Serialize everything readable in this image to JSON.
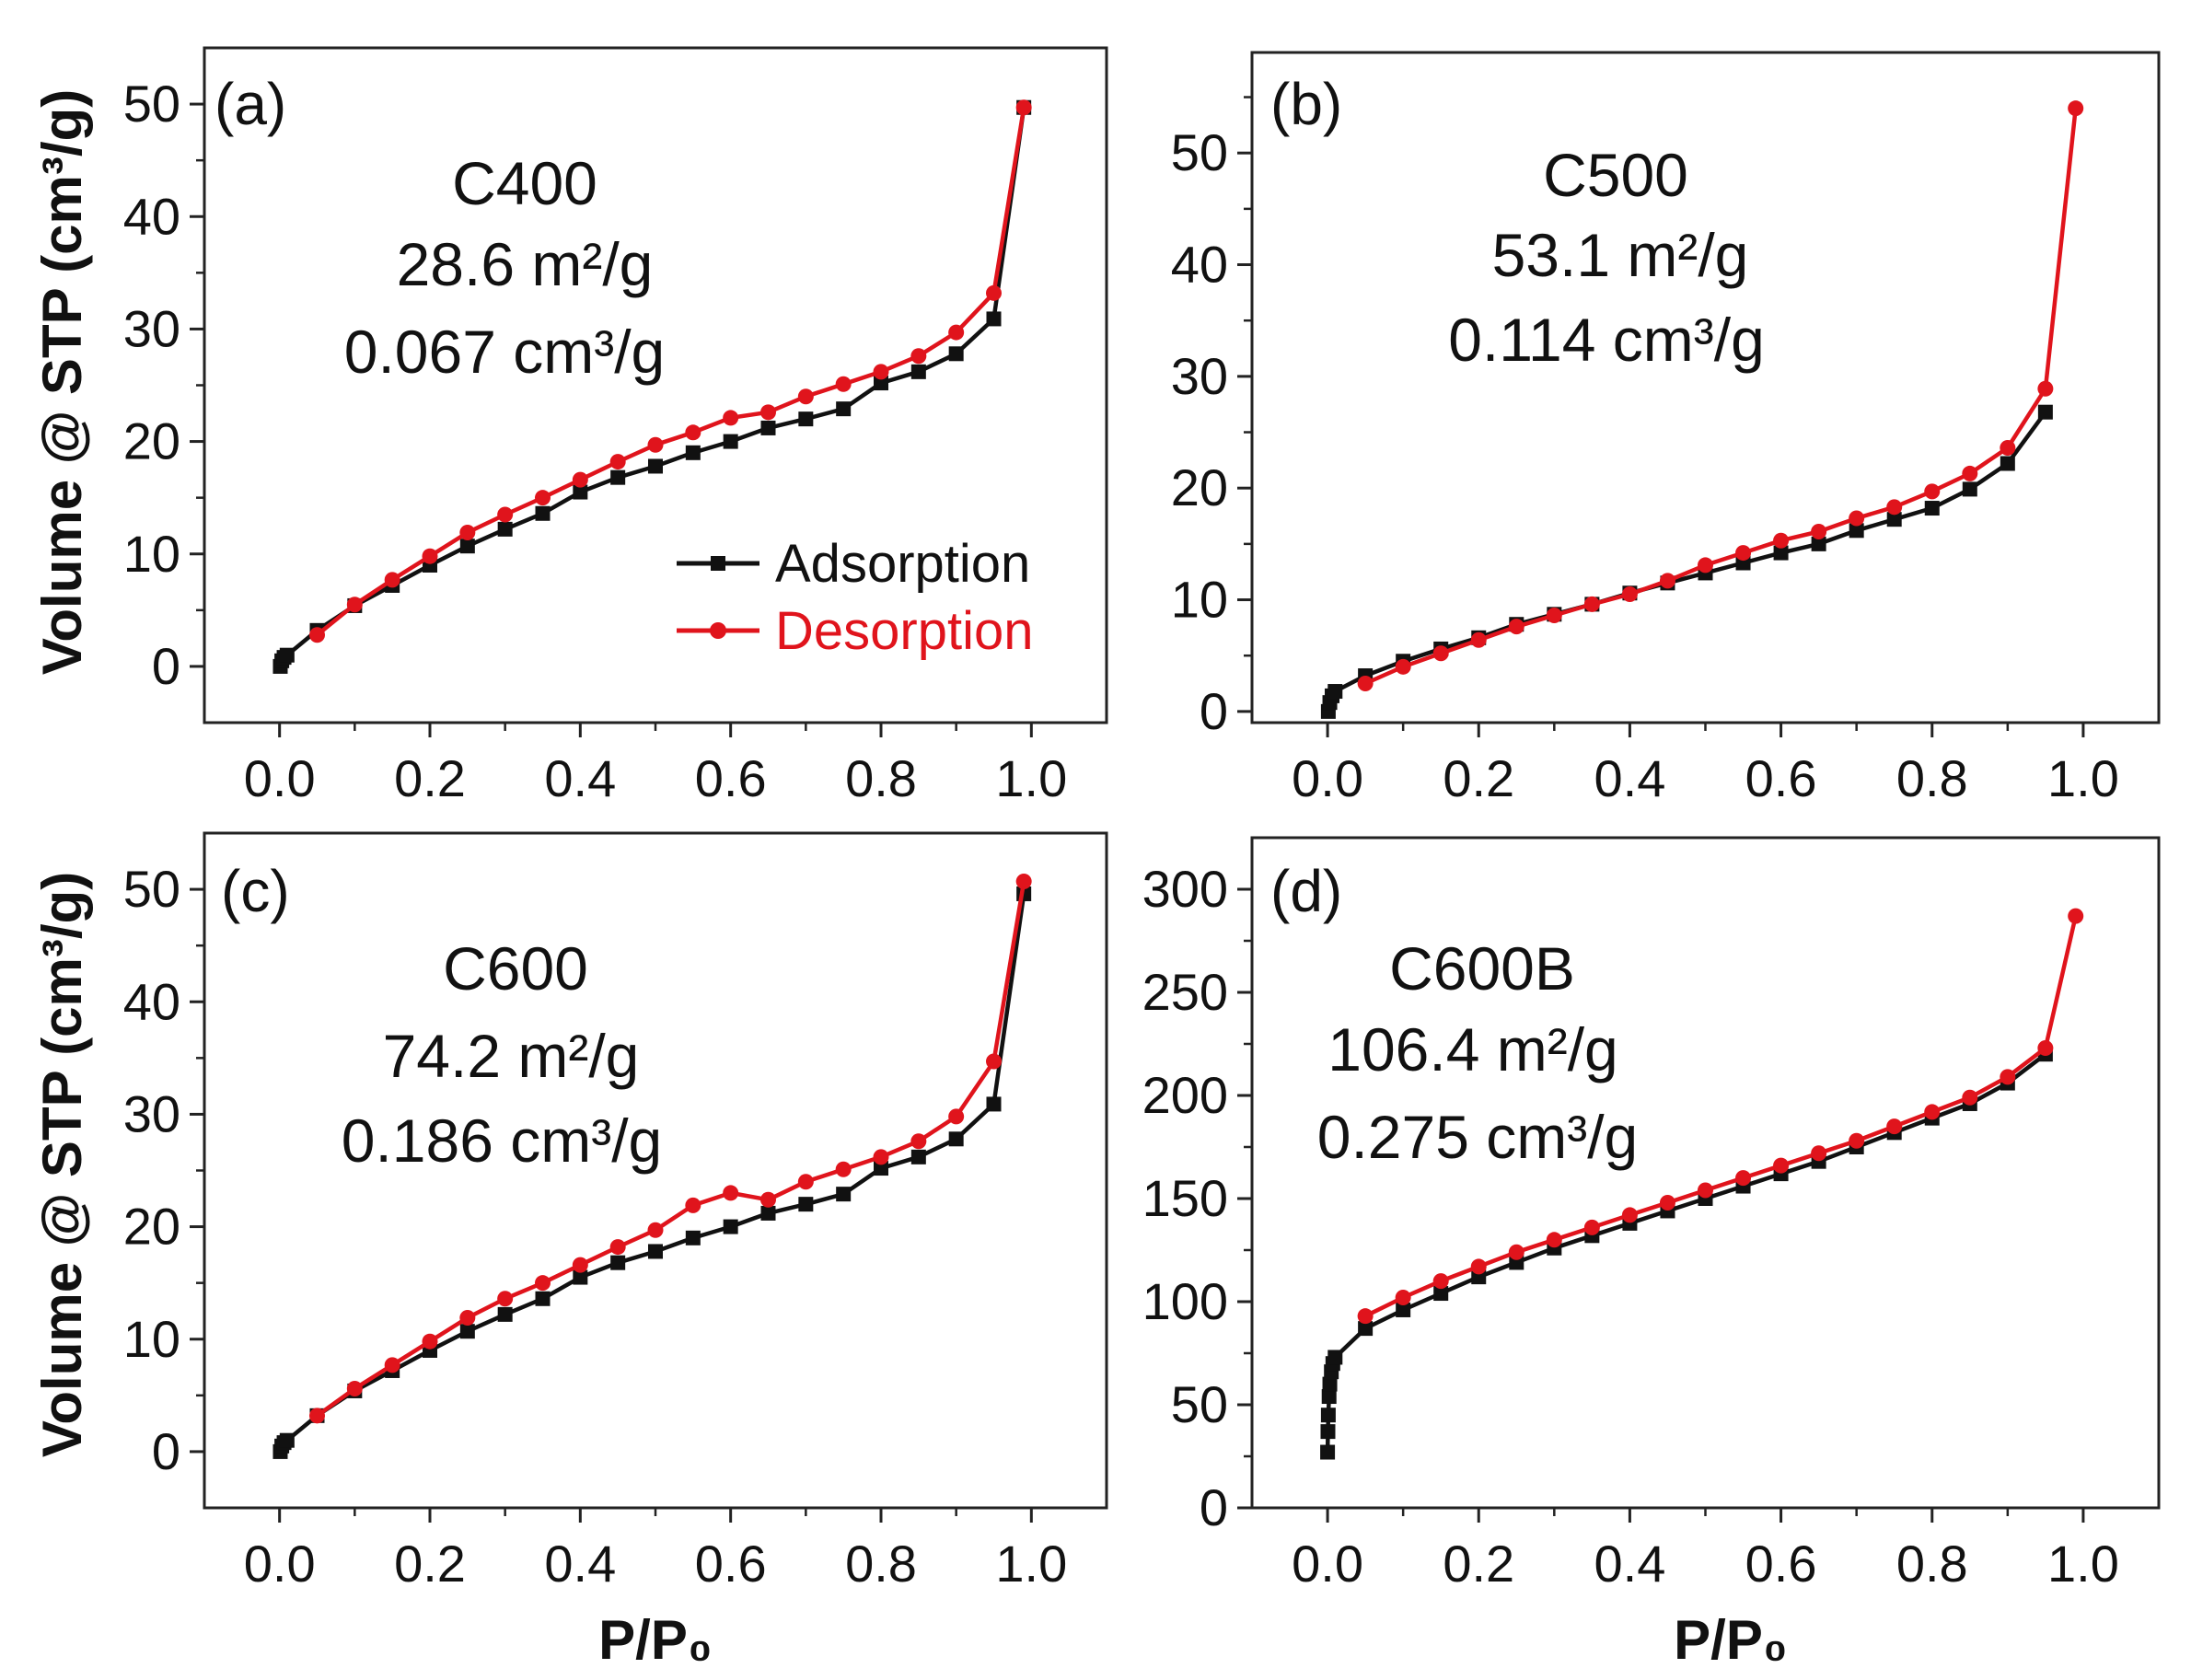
{
  "figure": {
    "ylabel": "Volume @ STP (cm³/g)",
    "xlabel": "P/P₀"
  },
  "legend": {
    "adsorption_label": "Adsorption",
    "desorption_label": "Desorption"
  },
  "colors": {
    "adsorption": "#111111",
    "desorption": "#e0141c",
    "axis": "#222222"
  },
  "chart_data": [
    {
      "type": "line",
      "panel": "(a)",
      "sample": "C400",
      "surface_area": "28.6 m²/g",
      "pore_volume": "0.067 cm³/g",
      "xlim": [
        -0.1,
        1.1
      ],
      "ylim": [
        -5,
        55
      ],
      "xticks": [
        0.0,
        0.2,
        0.4,
        0.6,
        0.8,
        1.0
      ],
      "xtick_labels": [
        "0.0",
        "0.2",
        "0.4",
        "0.6",
        "0.8",
        "1.0"
      ],
      "yticks": [
        0,
        10,
        20,
        30,
        40,
        50
      ],
      "ytick_labels": [
        "0",
        "10",
        "20",
        "30",
        "40",
        "50"
      ],
      "series": [
        {
          "name": "Adsorption",
          "x": [
            0.001,
            0.003,
            0.006,
            0.01,
            0.05,
            0.1,
            0.15,
            0.2,
            0.25,
            0.3,
            0.35,
            0.4,
            0.45,
            0.5,
            0.55,
            0.6,
            0.65,
            0.7,
            0.75,
            0.8,
            0.85,
            0.9,
            0.95,
            0.99
          ],
          "y": [
            0,
            0.5,
            0.8,
            1.0,
            3.2,
            5.4,
            7.2,
            9.0,
            10.7,
            12.2,
            13.6,
            15.5,
            16.8,
            17.8,
            19.0,
            20.0,
            21.2,
            22.0,
            22.9,
            25.2,
            26.2,
            27.8,
            30.9,
            49.7
          ]
        },
        {
          "name": "Desorption",
          "x": [
            0.05,
            0.1,
            0.15,
            0.2,
            0.25,
            0.3,
            0.35,
            0.4,
            0.45,
            0.5,
            0.55,
            0.6,
            0.65,
            0.7,
            0.75,
            0.8,
            0.85,
            0.9,
            0.95,
            0.99
          ],
          "y": [
            2.8,
            5.5,
            7.7,
            9.8,
            11.9,
            13.5,
            15.0,
            16.6,
            18.2,
            19.7,
            20.8,
            22.1,
            22.6,
            24.0,
            25.1,
            26.2,
            27.6,
            29.7,
            33.2,
            49.7
          ]
        }
      ]
    },
    {
      "type": "line",
      "panel": "(b)",
      "sample": "C500",
      "surface_area": "53.1 m²/g",
      "pore_volume": "0.114 cm³/g",
      "xlim": [
        -0.1,
        1.1
      ],
      "ylim": [
        -1,
        59
      ],
      "xticks": [
        0.0,
        0.2,
        0.4,
        0.6,
        0.8,
        1.0
      ],
      "xtick_labels": [
        "0.0",
        "0.2",
        "0.4",
        "0.6",
        "0.8",
        "1.0"
      ],
      "yticks": [
        0,
        10,
        20,
        30,
        40,
        50
      ],
      "ytick_labels": [
        "0",
        "10",
        "20",
        "30",
        "40",
        "50"
      ],
      "series": [
        {
          "name": "Adsorption",
          "x": [
            0.001,
            0.003,
            0.006,
            0.01,
            0.05,
            0.1,
            0.15,
            0.2,
            0.25,
            0.3,
            0.35,
            0.4,
            0.45,
            0.5,
            0.55,
            0.6,
            0.65,
            0.7,
            0.75,
            0.8,
            0.85,
            0.9,
            0.95
          ],
          "y": [
            0,
            0.8,
            1.4,
            1.8,
            3.2,
            4.5,
            5.6,
            6.6,
            7.8,
            8.7,
            9.6,
            10.6,
            11.5,
            12.4,
            13.3,
            14.2,
            15.0,
            16.2,
            17.2,
            18.2,
            19.9,
            22.2,
            26.8
          ]
        },
        {
          "name": "Desorption",
          "x": [
            0.05,
            0.1,
            0.15,
            0.2,
            0.25,
            0.3,
            0.35,
            0.4,
            0.45,
            0.5,
            0.55,
            0.6,
            0.65,
            0.7,
            0.75,
            0.8,
            0.85,
            0.9,
            0.95,
            0.99
          ],
          "y": [
            2.5,
            4.0,
            5.2,
            6.4,
            7.6,
            8.6,
            9.6,
            10.5,
            11.7,
            13.1,
            14.2,
            15.3,
            16.1,
            17.3,
            18.3,
            19.7,
            21.3,
            23.6,
            28.9,
            54.0
          ]
        }
      ]
    },
    {
      "type": "line",
      "panel": "(c)",
      "sample": "C600",
      "surface_area": "74.2 m²/g",
      "pore_volume": "0.186 cm³/g",
      "xlim": [
        -0.1,
        1.1
      ],
      "ylim": [
        -5,
        55
      ],
      "xticks": [
        0.0,
        0.2,
        0.4,
        0.6,
        0.8,
        1.0
      ],
      "xtick_labels": [
        "0.0",
        "0.2",
        "0.4",
        "0.6",
        "0.8",
        "1.0"
      ],
      "yticks": [
        0,
        10,
        20,
        30,
        40,
        50
      ],
      "ytick_labels": [
        "0",
        "10",
        "20",
        "30",
        "40",
        "50"
      ],
      "series": [
        {
          "name": "Adsorption",
          "x": [
            0.001,
            0.003,
            0.006,
            0.01,
            0.05,
            0.1,
            0.15,
            0.2,
            0.25,
            0.3,
            0.35,
            0.4,
            0.45,
            0.5,
            0.55,
            0.6,
            0.65,
            0.7,
            0.75,
            0.8,
            0.85,
            0.9,
            0.95,
            0.99
          ],
          "y": [
            0,
            0.5,
            0.8,
            1.0,
            3.2,
            5.4,
            7.2,
            9.0,
            10.7,
            12.2,
            13.6,
            15.5,
            16.8,
            17.8,
            19.0,
            20.0,
            21.2,
            22.0,
            22.9,
            25.2,
            26.2,
            27.8,
            30.9,
            49.6
          ]
        },
        {
          "name": "Desorption",
          "x": [
            0.05,
            0.1,
            0.15,
            0.2,
            0.25,
            0.3,
            0.35,
            0.4,
            0.45,
            0.5,
            0.55,
            0.6,
            0.65,
            0.7,
            0.75,
            0.8,
            0.85,
            0.9,
            0.95,
            0.99
          ],
          "y": [
            3.2,
            5.6,
            7.7,
            9.8,
            11.9,
            13.6,
            15.0,
            16.6,
            18.2,
            19.7,
            21.9,
            23.0,
            22.4,
            24.0,
            25.1,
            26.2,
            27.6,
            29.8,
            34.7,
            50.7
          ]
        }
      ]
    },
    {
      "type": "line",
      "panel": "(d)",
      "sample": "C600B",
      "surface_area": "106.4 m²/g",
      "pore_volume": "0.275 cm³/g",
      "xlim": [
        -0.1,
        1.1
      ],
      "ylim": [
        0,
        325
      ],
      "xticks": [
        0.0,
        0.2,
        0.4,
        0.6,
        0.8,
        1.0
      ],
      "xtick_labels": [
        "0.0",
        "0.2",
        "0.4",
        "0.6",
        "0.8",
        "1.0"
      ],
      "yticks": [
        0,
        50,
        100,
        150,
        200,
        250,
        300
      ],
      "ytick_labels": [
        "0",
        "50",
        "100",
        "150",
        "200",
        "250",
        "300"
      ],
      "series": [
        {
          "name": "Adsorption",
          "x": [
            0.0,
            0.0005,
            0.001,
            0.002,
            0.003,
            0.005,
            0.007,
            0.01,
            0.05,
            0.1,
            0.15,
            0.2,
            0.25,
            0.3,
            0.35,
            0.4,
            0.45,
            0.5,
            0.55,
            0.6,
            0.65,
            0.7,
            0.75,
            0.8,
            0.85,
            0.9,
            0.95
          ],
          "y": [
            27,
            37,
            45,
            54,
            60,
            66,
            70,
            73,
            87,
            96,
            104,
            112,
            119,
            126,
            132,
            138,
            144,
            150,
            156,
            162,
            168,
            175,
            182,
            189,
            196,
            206,
            220
          ]
        },
        {
          "name": "Desorption",
          "x": [
            0.05,
            0.1,
            0.15,
            0.2,
            0.25,
            0.3,
            0.35,
            0.4,
            0.45,
            0.5,
            0.55,
            0.6,
            0.65,
            0.7,
            0.75,
            0.8,
            0.85,
            0.9,
            0.95,
            0.99
          ],
          "y": [
            93,
            102,
            110,
            117,
            124,
            130,
            136,
            142,
            148,
            154,
            160,
            166,
            172,
            178,
            185,
            192,
            199,
            209,
            223,
            287
          ]
        }
      ]
    }
  ]
}
